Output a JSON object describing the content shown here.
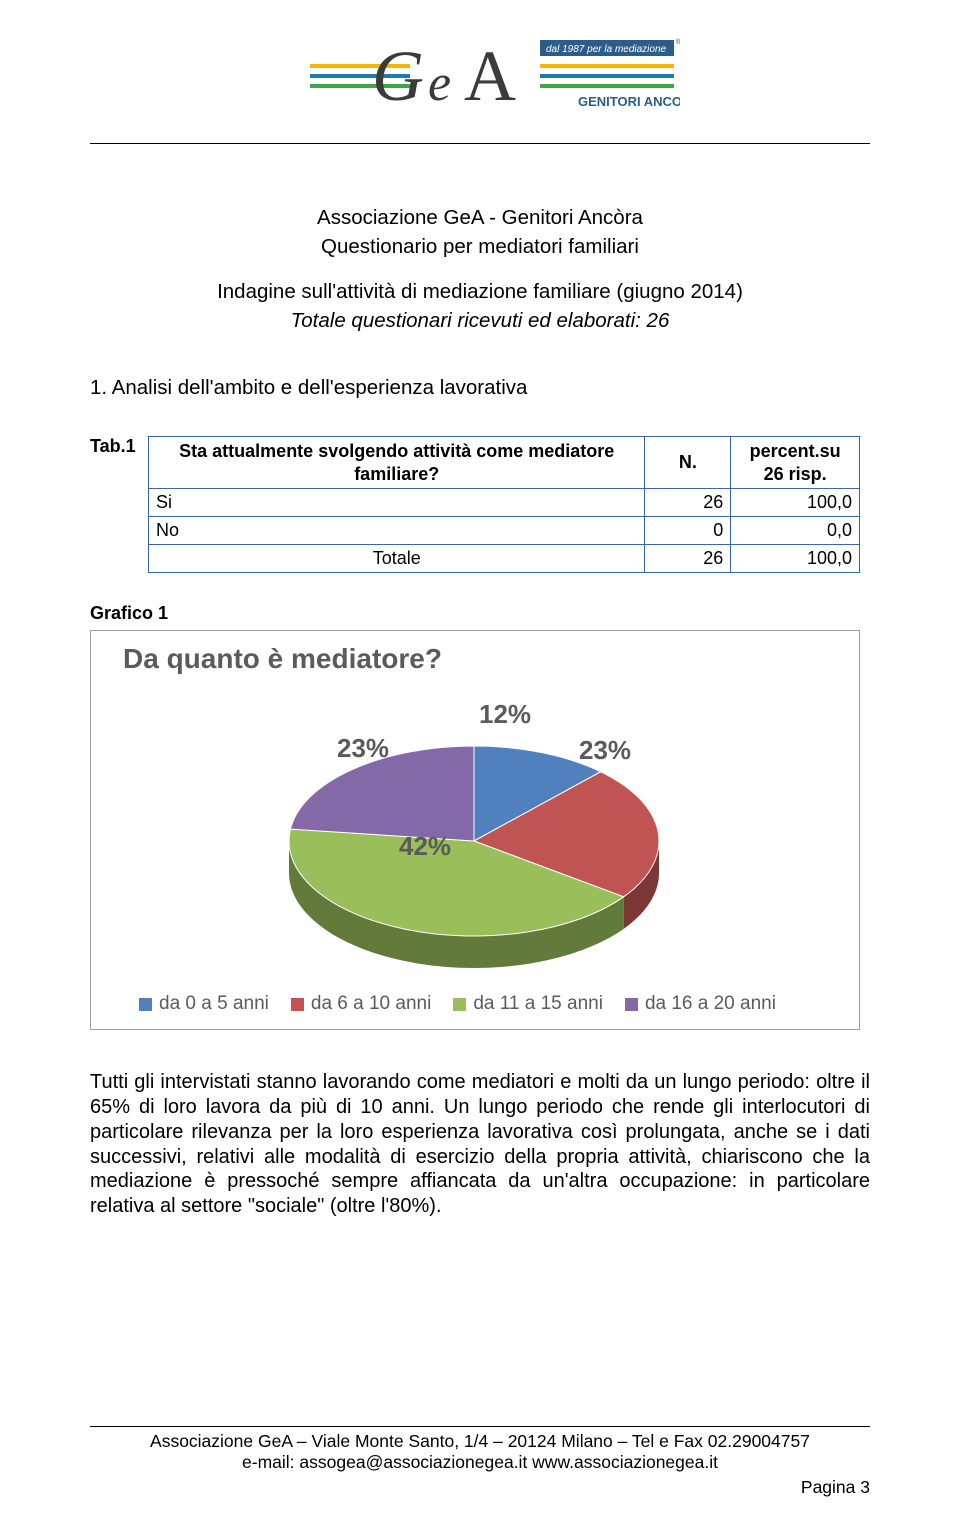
{
  "logo": {
    "name": "GeA",
    "tagline": "dal 1987 per la mediazione",
    "sub": "GENITORI ANCORA",
    "colors": {
      "yellow": "#f7b500",
      "blue": "#1a7bb8",
      "green": "#3fa648",
      "text_dark": "#3b3b3b",
      "text_blue": "#2a5d8a"
    }
  },
  "intro": {
    "title": "Associazione GeA - Genitori Ancòra",
    "subtitle": "Questionario per mediatori familiari",
    "indagine": "Indagine sull'attività di mediazione familiare (giugno 2014)",
    "totale": "Totale questionari ricevuti ed elaborati: 26"
  },
  "section1_title": "1. Analisi dell'ambito e dell'esperienza lavorativa",
  "tab1": {
    "id": "Tab.1",
    "question": "Sta attualmente svolgendo attività come mediatore familiare?",
    "col_n": "N.",
    "col_p_line1": "percent.su",
    "col_p_line2": "26 risp.",
    "rows": [
      {
        "label": "Si",
        "n": "26",
        "p": "100,0"
      },
      {
        "label": "No",
        "n": "0",
        "p": "0,0"
      }
    ],
    "total_label": "Totale",
    "total_n": "26",
    "total_p": "100,0"
  },
  "grafico1_label": "Grafico 1",
  "chart": {
    "title": "Da quanto è mediatore?",
    "type": "pie-3d",
    "background": "#ffffff",
    "border_color": "#9c9c9c",
    "label_color": "#5b5b5b",
    "label_fontsize": 26,
    "title_fontsize": 28,
    "slices": [
      {
        "label": "da 0 a 5 anni",
        "value": 12,
        "pct": "12%",
        "color": "#5080be"
      },
      {
        "label": "da 6 a 10 anni",
        "value": 23,
        "pct": "23%",
        "color": "#c05452"
      },
      {
        "label": "da 11 a 15 anni",
        "value": 42,
        "pct": "42%",
        "color": "#99be5a"
      },
      {
        "label": "da 16 a 20 anni",
        "value": 23,
        "pct": "23%",
        "color": "#8469a8"
      }
    ]
  },
  "body_paragraph": "Tutti gli intervistati stanno lavorando come mediatori e molti da un lungo periodo: oltre il 65% di loro lavora da più di 10 anni. Un lungo periodo che rende gli interlocutori di particolare rilevanza per la loro esperienza lavorativa così prolungata, anche se i dati successivi, relativi alle modalità di esercizio della propria attività, chiariscono che la mediazione è pressoché sempre affiancata da un'altra occupazione: in particolare relativa al settore \"sociale\" (oltre l'80%).",
  "footer": {
    "line1": "Associazione GeA – Viale Monte Santo, 1/4 – 20124 Milano – Tel e Fax 02.29004757",
    "line2": "e-mail: assogea@associazionegea.it   www.associazionegea.it",
    "page": "Pagina 3"
  }
}
